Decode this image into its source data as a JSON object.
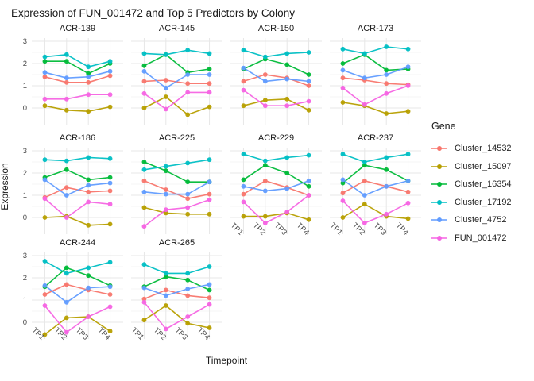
{
  "chart_data": {
    "type": "line",
    "title": "Expression of FUN_001472 and Top 5 Predictors by Colony",
    "xlabel": "Timepoint",
    "ylabel": "Expression",
    "legend_title": "Gene",
    "legend_position": "right",
    "x": [
      "TP1",
      "TP2",
      "TP3",
      "TP4"
    ],
    "yticks": [
      0,
      1,
      2,
      3
    ],
    "yminor": [
      0.5,
      1.5,
      2.5
    ],
    "ylim": [
      -0.75,
      3.2
    ],
    "grid": true,
    "genes": [
      {
        "name": "Cluster_14532",
        "color": "#F8766D"
      },
      {
        "name": "Cluster_15097",
        "color": "#B79F00"
      },
      {
        "name": "Cluster_16354",
        "color": "#00BA38"
      },
      {
        "name": "Cluster_17192",
        "color": "#00BFC4"
      },
      {
        "name": "Cluster_4752",
        "color": "#619CFF"
      },
      {
        "name": "FUN_001472",
        "color": "#F564E3"
      }
    ],
    "facets": [
      {
        "colony": "ACR-139",
        "values": [
          [
            1.4,
            1.15,
            1.15,
            1.45
          ],
          [
            0.1,
            -0.1,
            -0.15,
            0.05
          ],
          [
            2.1,
            2.1,
            1.55,
            2.0
          ],
          [
            2.3,
            2.4,
            1.85,
            2.1
          ],
          [
            1.6,
            1.35,
            1.4,
            1.65
          ],
          [
            0.4,
            0.4,
            0.6,
            0.6
          ]
        ]
      },
      {
        "colony": "ACR-145",
        "values": [
          [
            1.2,
            1.25,
            1.1,
            1.1
          ],
          [
            0.0,
            0.5,
            -0.3,
            0.05
          ],
          [
            1.9,
            2.4,
            1.6,
            1.75
          ],
          [
            2.45,
            2.4,
            2.6,
            2.45
          ],
          [
            1.65,
            0.9,
            1.5,
            1.5
          ],
          [
            0.65,
            -0.05,
            0.7,
            0.7
          ]
        ]
      },
      {
        "colony": "ACR-150",
        "values": [
          [
            1.2,
            1.5,
            1.35,
            1.0
          ],
          [
            0.1,
            0.35,
            0.4,
            -0.1
          ],
          [
            1.75,
            2.2,
            1.95,
            1.5
          ],
          [
            2.6,
            2.3,
            2.45,
            2.5
          ],
          [
            1.8,
            1.2,
            1.3,
            1.2
          ],
          [
            0.8,
            0.1,
            0.1,
            0.3
          ]
        ]
      },
      {
        "colony": "ACR-173",
        "values": [
          [
            1.35,
            1.25,
            1.1,
            1.05
          ],
          [
            0.25,
            0.1,
            -0.25,
            -0.15
          ],
          [
            2.0,
            2.4,
            1.7,
            1.75
          ],
          [
            2.65,
            2.45,
            2.75,
            2.65
          ],
          [
            1.7,
            1.35,
            1.5,
            1.85
          ],
          [
            0.9,
            0.15,
            0.65,
            1.0
          ]
        ]
      },
      {
        "colony": "ACR-186",
        "values": [
          [
            0.9,
            1.35,
            1.15,
            1.2
          ],
          [
            0.0,
            0.05,
            -0.35,
            -0.3
          ],
          [
            1.8,
            2.15,
            1.7,
            1.8
          ],
          [
            2.6,
            2.55,
            2.7,
            2.65
          ],
          [
            1.7,
            1.0,
            1.45,
            1.55
          ],
          [
            0.85,
            0.0,
            0.7,
            0.6
          ]
        ]
      },
      {
        "colony": "ACR-225",
        "values": [
          [
            1.65,
            1.25,
            0.85,
            1.05
          ],
          [
            0.45,
            0.2,
            0.15,
            0.15
          ],
          [
            2.5,
            2.1,
            1.6,
            1.6
          ],
          [
            2.15,
            2.3,
            2.45,
            2.6
          ],
          [
            1.15,
            1.05,
            1.05,
            1.6
          ],
          [
            -0.4,
            0.35,
            0.45,
            0.8
          ]
        ]
      },
      {
        "colony": "ACR-229",
        "values": [
          [
            1.05,
            1.65,
            1.35,
            1.0
          ],
          [
            0.05,
            0.05,
            0.2,
            -0.1
          ],
          [
            1.7,
            2.35,
            2.0,
            1.4
          ],
          [
            2.85,
            2.55,
            2.7,
            2.8
          ],
          [
            1.4,
            1.2,
            1.3,
            1.65
          ],
          [
            0.7,
            -0.25,
            0.25,
            1.0
          ]
        ]
      },
      {
        "colony": "ACR-237",
        "values": [
          [
            1.1,
            1.65,
            1.4,
            1.15
          ],
          [
            0.0,
            0.6,
            0.05,
            -0.05
          ],
          [
            1.55,
            2.35,
            2.15,
            1.65
          ],
          [
            2.85,
            2.5,
            2.7,
            2.85
          ],
          [
            1.7,
            1.0,
            1.4,
            1.65
          ],
          [
            0.75,
            -0.25,
            0.15,
            0.65
          ]
        ]
      },
      {
        "colony": "ACR-244",
        "values": [
          [
            1.25,
            1.7,
            1.45,
            1.25
          ],
          [
            -0.55,
            0.2,
            0.25,
            -0.4
          ],
          [
            1.6,
            2.45,
            2.1,
            1.65
          ],
          [
            2.75,
            2.2,
            2.45,
            2.7
          ],
          [
            1.65,
            0.9,
            1.55,
            1.6
          ],
          [
            0.75,
            -0.45,
            0.25,
            0.7
          ]
        ]
      },
      {
        "colony": "ACR-265",
        "values": [
          [
            1.05,
            1.45,
            1.2,
            1.1
          ],
          [
            0.1,
            0.75,
            -0.05,
            -0.25
          ],
          [
            1.6,
            2.05,
            1.9,
            1.45
          ],
          [
            2.6,
            2.2,
            2.2,
            2.5
          ],
          [
            1.55,
            1.2,
            1.5,
            1.7
          ],
          [
            0.9,
            -0.3,
            0.25,
            0.8
          ]
        ]
      }
    ]
  }
}
